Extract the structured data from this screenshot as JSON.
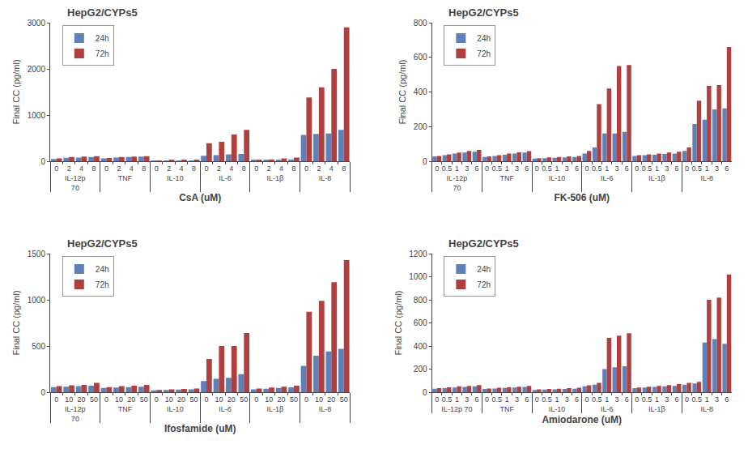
{
  "chart_data": [
    {
      "type": "bar",
      "title": "HepG2/CYPs5",
      "xlabel": "CsA (uM)",
      "ylabel": "Final CC (pg/ml)",
      "categories": [
        [
          "IL-12p\n70",
          "0"
        ],
        [
          "IL-12p\n70",
          "2"
        ],
        [
          "IL-12p\n70",
          "4"
        ],
        [
          "IL-12p\n70",
          "8"
        ],
        [
          "TNF",
          "0"
        ],
        [
          "TNF",
          "2"
        ],
        [
          "TNF",
          "4"
        ],
        [
          "TNF",
          "8"
        ],
        [
          "IL-10",
          "0"
        ],
        [
          "IL-10",
          "2"
        ],
        [
          "IL-10",
          "4"
        ],
        [
          "IL-10",
          "8"
        ],
        [
          "IL-6",
          "0"
        ],
        [
          "IL-6",
          "2"
        ],
        [
          "IL-6",
          "4"
        ],
        [
          "IL-6",
          "8"
        ],
        [
          "IL-1β",
          "0"
        ],
        [
          "IL-1β",
          "2"
        ],
        [
          "IL-1β",
          "4"
        ],
        [
          "IL-1β",
          "8"
        ],
        [
          "IL-8",
          "0"
        ],
        [
          "IL-8",
          "2"
        ],
        [
          "IL-8",
          "4"
        ],
        [
          "IL-8",
          "8"
        ]
      ],
      "series": [
        {
          "name": "24h",
          "color": "#6080b8",
          "values": [
            50,
            75,
            80,
            90,
            60,
            80,
            90,
            100,
            10,
            12,
            12,
            15,
            120,
            130,
            150,
            160,
            20,
            25,
            30,
            40,
            570,
            590,
            600,
            680
          ]
        },
        {
          "name": "72h",
          "color": "#b04040",
          "values": [
            60,
            90,
            100,
            110,
            70,
            90,
            100,
            110,
            15,
            18,
            20,
            20,
            390,
            420,
            580,
            680,
            25,
            40,
            60,
            80,
            1380,
            1600,
            2000,
            2900
          ]
        }
      ],
      "ylim": [
        0,
        3000
      ],
      "yticks": [
        0,
        1000,
        2000,
        3000
      ],
      "grid": false,
      "legend": "upper left"
    },
    {
      "type": "bar",
      "title": "HepG2/CYPs5",
      "xlabel": "FK-506 (uM)",
      "ylabel": "Final CC (pg/ml)",
      "categories": [
        [
          "IL-12p\n70",
          "0"
        ],
        [
          "IL-12p\n70",
          "0.5"
        ],
        [
          "IL-12p\n70",
          "1"
        ],
        [
          "IL-12p\n70",
          "3"
        ],
        [
          "IL-12p\n70",
          "6"
        ],
        [
          "TNF",
          "0"
        ],
        [
          "TNF",
          "0.5"
        ],
        [
          "TNF",
          "1"
        ],
        [
          "TNF",
          "3"
        ],
        [
          "TNF",
          "6"
        ],
        [
          "IL-10",
          "0"
        ],
        [
          "IL-10",
          "0.5"
        ],
        [
          "IL-10",
          "1"
        ],
        [
          "IL-10",
          "3"
        ],
        [
          "IL-10",
          "6"
        ],
        [
          "IL-6",
          "0"
        ],
        [
          "IL-6",
          "0.5"
        ],
        [
          "IL-6",
          "1"
        ],
        [
          "IL-6",
          "3"
        ],
        [
          "IL-6",
          "6"
        ],
        [
          "IL-1β",
          "0"
        ],
        [
          "IL-1β",
          "0.5"
        ],
        [
          "IL-1β",
          "1"
        ],
        [
          "IL-1β",
          "3"
        ],
        [
          "IL-1β",
          "6"
        ],
        [
          "IL-8",
          "0"
        ],
        [
          "IL-8",
          "0.5"
        ],
        [
          "IL-8",
          "1"
        ],
        [
          "IL-8",
          "3"
        ],
        [
          "IL-8",
          "6"
        ]
      ],
      "series": [
        {
          "name": "24h",
          "color": "#6080b8",
          "values": [
            28,
            35,
            45,
            50,
            55,
            25,
            30,
            38,
            45,
            50,
            15,
            18,
            20,
            22,
            25,
            45,
            80,
            160,
            160,
            170,
            30,
            35,
            38,
            42,
            45,
            60,
            215,
            240,
            300,
            305
          ]
        },
        {
          "name": "72h",
          "color": "#b04040",
          "values": [
            30,
            40,
            50,
            60,
            65,
            28,
            35,
            45,
            52,
            58,
            18,
            22,
            25,
            28,
            30,
            60,
            330,
            420,
            550,
            555,
            35,
            40,
            45,
            50,
            55,
            80,
            350,
            435,
            440,
            660
          ]
        }
      ],
      "ylim": [
        0,
        800
      ],
      "yticks": [
        0,
        200,
        400,
        600,
        800
      ],
      "grid": false,
      "legend": "upper left"
    },
    {
      "type": "bar",
      "title": "HepG2/CYPs5",
      "xlabel": "Ifosfamide (uM)",
      "ylabel": "Final CC (pg/ml)",
      "categories": [
        [
          "IL-12p\n70",
          "0"
        ],
        [
          "IL-12p\n70",
          "10"
        ],
        [
          "IL-12p\n70",
          "20"
        ],
        [
          "IL-12p\n70",
          "50"
        ],
        [
          "TNF",
          "0"
        ],
        [
          "TNF",
          "10"
        ],
        [
          "TNF",
          "20"
        ],
        [
          "TNF",
          "50"
        ],
        [
          "IL-10",
          "0"
        ],
        [
          "IL-10",
          "10"
        ],
        [
          "IL-10",
          "20"
        ],
        [
          "IL-10",
          "50"
        ],
        [
          "IL-6",
          "0"
        ],
        [
          "IL-6",
          "10"
        ],
        [
          "IL-6",
          "20"
        ],
        [
          "IL-6",
          "50"
        ],
        [
          "IL-1β",
          "0"
        ],
        [
          "IL-1β",
          "10"
        ],
        [
          "IL-1β",
          "20"
        ],
        [
          "IL-1β",
          "50"
        ],
        [
          "IL-8",
          "0"
        ],
        [
          "IL-8",
          "10"
        ],
        [
          "IL-8",
          "20"
        ],
        [
          "IL-8",
          "50"
        ]
      ],
      "series": [
        {
          "name": "24h",
          "color": "#6080b8",
          "values": [
            55,
            60,
            65,
            70,
            45,
            50,
            55,
            60,
            20,
            25,
            28,
            30,
            120,
            145,
            155,
            195,
            30,
            38,
            45,
            52,
            285,
            395,
            440,
            470
          ]
        },
        {
          "name": "72h",
          "color": "#b04040",
          "values": [
            65,
            75,
            80,
            100,
            55,
            65,
            70,
            80,
            25,
            30,
            35,
            40,
            360,
            500,
            500,
            640,
            40,
            50,
            60,
            70,
            870,
            990,
            1190,
            1430
          ]
        }
      ],
      "ylim": [
        0,
        1500
      ],
      "yticks": [
        0,
        500,
        1000,
        1500
      ],
      "grid": false,
      "legend": "upper left"
    },
    {
      "type": "bar",
      "title": "HepG2/CYPs5",
      "xlabel": "Amiodarone (uM)",
      "ylabel": "Final CC (pg/ml)",
      "categories": [
        [
          "IL-12p 70",
          "0"
        ],
        [
          "IL-12p 70",
          "0.5"
        ],
        [
          "IL-12p 70",
          "1"
        ],
        [
          "IL-12p 70",
          "3"
        ],
        [
          "IL-12p 70",
          "6"
        ],
        [
          "TNF",
          "0"
        ],
        [
          "TNF",
          "0.5"
        ],
        [
          "TNF",
          "1"
        ],
        [
          "TNF",
          "3"
        ],
        [
          "TNF",
          "6"
        ],
        [
          "IL-10",
          "0"
        ],
        [
          "IL-10",
          "0.5"
        ],
        [
          "IL-10",
          "1"
        ],
        [
          "IL-10",
          "3"
        ],
        [
          "IL-10",
          "6"
        ],
        [
          "IL-6",
          "0"
        ],
        [
          "IL-6",
          "0.5"
        ],
        [
          "IL-6",
          "1"
        ],
        [
          "IL-6",
          "3"
        ],
        [
          "IL-6",
          "6"
        ],
        [
          "IL-1β",
          "0"
        ],
        [
          "IL-1β",
          "0.5"
        ],
        [
          "IL-1β",
          "1"
        ],
        [
          "IL-1β",
          "3"
        ],
        [
          "IL-1β",
          "6"
        ],
        [
          "IL-8",
          "0"
        ],
        [
          "IL-8",
          "0.5"
        ],
        [
          "IL-8",
          "1"
        ],
        [
          "IL-8",
          "3"
        ],
        [
          "IL-8",
          "6"
        ]
      ],
      "series": [
        {
          "name": "24h",
          "color": "#6080b8",
          "values": [
            30,
            35,
            40,
            45,
            50,
            28,
            32,
            36,
            40,
            45,
            20,
            22,
            25,
            28,
            30,
            50,
            65,
            200,
            215,
            225,
            35,
            40,
            45,
            50,
            55,
            65,
            75,
            430,
            460,
            420
          ]
        },
        {
          "name": "72h",
          "color": "#b04040",
          "values": [
            35,
            42,
            50,
            55,
            62,
            32,
            38,
            42,
            48,
            55,
            25,
            28,
            30,
            35,
            38,
            60,
            80,
            470,
            490,
            510,
            40,
            48,
            55,
            62,
            70,
            80,
            90,
            800,
            820,
            1020
          ]
        }
      ],
      "ylim": [
        0,
        1200
      ],
      "yticks": [
        0,
        200,
        400,
        600,
        800,
        1000,
        1200
      ],
      "grid": false,
      "legend": "upper left"
    }
  ]
}
